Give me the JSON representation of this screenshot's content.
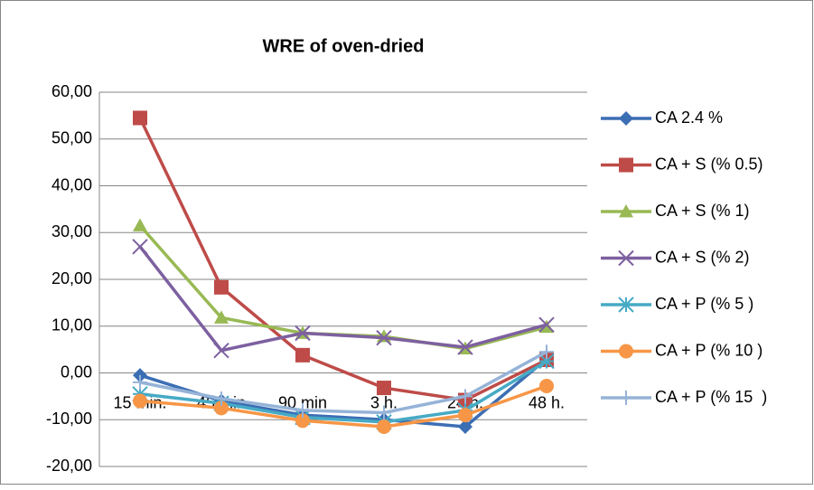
{
  "chart_data": {
    "type": "line",
    "title": "WRE of oven-dried",
    "categories": [
      "15 min.",
      "45 min",
      "90 min",
      "3 h.",
      "24 h.",
      "48 h."
    ],
    "ylim": [
      -20,
      60
    ],
    "yticks": [
      {
        "value": -20,
        "label": "-20,00"
      },
      {
        "value": -10,
        "label": "-10,00"
      },
      {
        "value": 0,
        "label": "0,00"
      },
      {
        "value": 10,
        "label": "10,00"
      },
      {
        "value": 20,
        "label": "20,00"
      },
      {
        "value": 30,
        "label": "30,00"
      },
      {
        "value": 40,
        "label": "40,00"
      },
      {
        "value": 50,
        "label": "50,00"
      },
      {
        "value": 60,
        "label": "60,00"
      }
    ],
    "grid": true,
    "legend": "right",
    "series": [
      {
        "name": "CA 2.4 %",
        "color": "#3c6eb4",
        "marker": "diamond",
        "values": [
          -0.5,
          -6,
          -9,
          -10,
          -11.5,
          3
        ]
      },
      {
        "name": "CA + S (% 0.5)",
        "color": "#be4b48",
        "marker": "square",
        "values": [
          54.5,
          18.3,
          3.8,
          -3.2,
          -5.8,
          2.8
        ]
      },
      {
        "name": "CA + S (% 1)",
        "color": "#98b954",
        "marker": "triangle",
        "values": [
          31.5,
          11.8,
          8.5,
          7.8,
          5.2,
          9.8
        ]
      },
      {
        "name": "CA + S (% 2)",
        "color": "#7d60a0",
        "marker": "x",
        "values": [
          27,
          4.8,
          8.5,
          7.5,
          5.5,
          10.3
        ]
      },
      {
        "name": "CA + P (% 5 )",
        "color": "#46aac5",
        "marker": "star",
        "values": [
          -4.5,
          -6.5,
          -9.5,
          -10.5,
          -8,
          2.5
        ]
      },
      {
        "name": "CA + P (% 10 )",
        "color": "#f79646",
        "marker": "circle",
        "values": [
          -6,
          -7.5,
          -10.2,
          -11.5,
          -9,
          -2.8
        ]
      },
      {
        "name": "CA + P (% 15  )",
        "color": "#95b3d7",
        "marker": "plus",
        "values": [
          -2,
          -5.5,
          -8,
          -8.5,
          -5,
          4.5
        ]
      }
    ]
  }
}
